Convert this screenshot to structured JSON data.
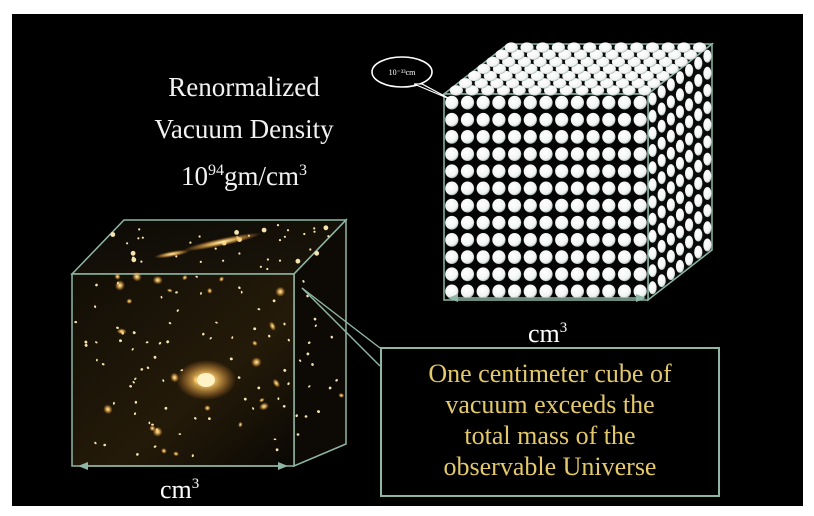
{
  "title": {
    "line1": "Renormalized",
    "line2": "Vacuum Density",
    "line3_base": "10",
    "line3_exp": "94",
    "line3_unit": "gm/cm",
    "line3_unit_exp": "3"
  },
  "lattice_cube": {
    "cell_label": "10⁻³³cm",
    "dimension_label_base": "cm",
    "dimension_label_exp": "3"
  },
  "galaxy_cube": {
    "dimension_label_base": "cm",
    "dimension_label_exp": "3"
  },
  "callout": {
    "lines": [
      "One centimeter cube of",
      "vacuum exceeds the",
      "total mass of the",
      "observable Universe"
    ]
  },
  "colors": {
    "background": "#000000",
    "title_text": "#f2f2f2",
    "callout_text": "#e3c96a",
    "outline": "#8fb7a6",
    "sphere": "#ffffff",
    "galaxy_glow": "#ffcc66"
  }
}
